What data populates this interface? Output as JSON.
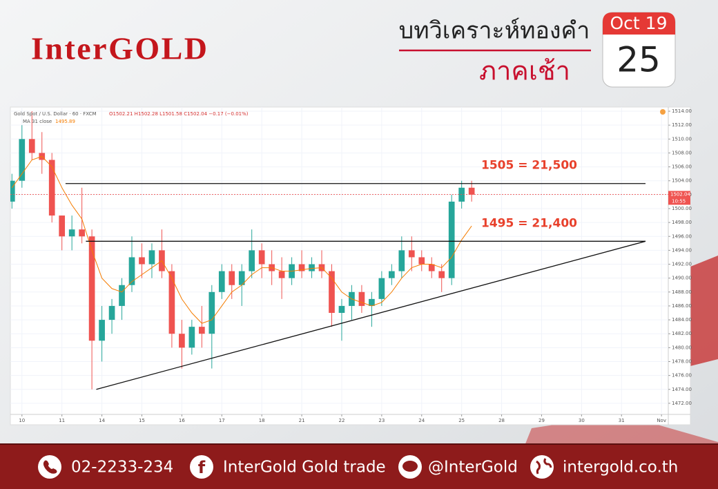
{
  "header": {
    "logo": "InterGOLD",
    "title": "บทวิเคราะห์ทองคำ",
    "subtitle": "ภาคเช้า",
    "calendar_month": "Oct 19",
    "calendar_day": "25"
  },
  "chart_data": {
    "type": "candlestick",
    "symbol": "Gold Spot / U.S. Dollar · 60 · FXCM",
    "ohlc_text": "O1502.21 H1502.28 L1501.58 C1502.04 −0.17 (−0.01%)",
    "up_color": "#26a69a",
    "down_color": "#ef5350",
    "x": [
      -0.25,
      0,
      0.25,
      0.5,
      0.75,
      1,
      1.25,
      1.5,
      1.75,
      2,
      2.25,
      2.5,
      2.75,
      3,
      3.25,
      3.5,
      3.75,
      4,
      4.25,
      4.5,
      4.75,
      5,
      5.25,
      5.5,
      5.75,
      6,
      6.25,
      6.5,
      6.75,
      7,
      7.25,
      7.5,
      7.75,
      8,
      8.25,
      8.5,
      8.75,
      9,
      9.25,
      9.5,
      9.75,
      10,
      10.25,
      10.5,
      10.75,
      11,
      11.25
    ],
    "open": [
      1501,
      1504,
      1510,
      1508,
      1507,
      1499,
      1496,
      1497,
      1496,
      1481,
      1484,
      1486,
      1489,
      1493,
      1492,
      1494,
      1491,
      1482,
      1480,
      1483,
      1482,
      1488,
      1491,
      1489,
      1491,
      1494,
      1492,
      1491,
      1490,
      1492,
      1491,
      1492,
      1491,
      1485,
      1486,
      1488,
      1486,
      1487,
      1490,
      1491,
      1494,
      1493,
      1492,
      1491,
      1490,
      1501,
      1503
    ],
    "high": [
      1505,
      1512,
      1514,
      1511,
      1508,
      1499,
      1499,
      1503,
      1497,
      1486,
      1487,
      1490,
      1496,
      1495,
      1495,
      1497,
      1492,
      1484,
      1484,
      1486,
      1489,
      1492,
      1492,
      1492,
      1497,
      1495,
      1494,
      1493,
      1493,
      1494,
      1493,
      1494,
      1492,
      1487,
      1489,
      1489,
      1488,
      1491,
      1492,
      1496,
      1496,
      1494,
      1493,
      1492,
      1502,
      1504,
      1504
    ],
    "low": [
      1500,
      1503,
      1507,
      1505,
      1498,
      1494,
      1494,
      1495,
      1474,
      1478,
      1482,
      1484,
      1488,
      1490,
      1490,
      1490,
      1480,
      1477,
      1479,
      1480,
      1477,
      1487,
      1487,
      1486,
      1490,
      1490,
      1489,
      1487,
      1489,
      1490,
      1490,
      1490,
      1483,
      1481,
      1484,
      1485,
      1483,
      1486,
      1489,
      1490,
      1491,
      1491,
      1490,
      1488,
      1489,
      1500,
      1501
    ],
    "close": [
      1504,
      1510,
      1508,
      1507,
      1499,
      1496,
      1497,
      1496,
      1481,
      1484,
      1486,
      1489,
      1493,
      1492,
      1494,
      1491,
      1482,
      1480,
      1483,
      1482,
      1488,
      1491,
      1489,
      1491,
      1494,
      1492,
      1491,
      1490,
      1492,
      1491,
      1492,
      1491,
      1485,
      1486,
      1488,
      1486,
      1487,
      1490,
      1491,
      1494,
      1493,
      1492,
      1491,
      1490,
      1501,
      1503,
      1502
    ],
    "ma": {
      "label": "MA 31 close",
      "last": 1495.89,
      "color": "#f57c00",
      "values": [
        1503,
        1505,
        1507,
        1507.5,
        1506,
        1503,
        1500.5,
        1498.5,
        1494,
        1490,
        1488.5,
        1488,
        1489.5,
        1490.5,
        1491.5,
        1492.5,
        1490,
        1487,
        1485,
        1483.5,
        1484,
        1486,
        1488,
        1489,
        1490.5,
        1491.5,
        1491.5,
        1491,
        1491,
        1491.2,
        1491.4,
        1491.5,
        1490,
        1488,
        1487,
        1486.5,
        1486,
        1486.5,
        1488,
        1490,
        1491.5,
        1492,
        1492,
        1491.5,
        1493,
        1495.5,
        1497.5
      ]
    },
    "last_price": 1502.04,
    "last_time": "10:55",
    "last_color": "#ef5350",
    "levels": [
      {
        "label": "1505 = 21,500",
        "value": 1503.6,
        "x": [
          1.09,
          15.6
        ]
      },
      {
        "label": "1495 = 21,400",
        "value": 1495.3,
        "x": [
          1.6,
          15.6
        ]
      }
    ],
    "trendline": {
      "x": [
        1.86,
        15.6
      ],
      "y": [
        1474,
        1495.3
      ]
    },
    "xlim": [
      -0.29,
      16.17
    ],
    "xticks": [
      {
        "value": 0,
        "label": "10"
      },
      {
        "value": 1,
        "label": "11"
      },
      {
        "value": 2,
        "label": "14"
      },
      {
        "value": 3,
        "label": "15"
      },
      {
        "value": 4,
        "label": "16"
      },
      {
        "value": 5,
        "label": "17"
      },
      {
        "value": 6,
        "label": "18"
      },
      {
        "value": 7,
        "label": "21"
      },
      {
        "value": 8,
        "label": "22"
      },
      {
        "value": 9,
        "label": "23"
      },
      {
        "value": 10,
        "label": "24"
      },
      {
        "value": 11,
        "label": "25"
      },
      {
        "value": 12,
        "label": "28"
      },
      {
        "value": 13,
        "label": "29"
      },
      {
        "value": 14,
        "label": "30"
      },
      {
        "value": 15,
        "label": "31"
      },
      {
        "value": 16,
        "label": "Nov"
      }
    ],
    "ylim": [
      1470.4,
      1514.6
    ],
    "yticks": [
      {
        "value": 1472,
        "label": "1472.00"
      },
      {
        "value": 1474,
        "label": "1474.00"
      },
      {
        "value": 1476,
        "label": "1476.00"
      },
      {
        "value": 1478,
        "label": "1478.00"
      },
      {
        "value": 1480,
        "label": "1480.00"
      },
      {
        "value": 1482,
        "label": "1482.00"
      },
      {
        "value": 1484,
        "label": "1484.00"
      },
      {
        "value": 1486,
        "label": "1486.00"
      },
      {
        "value": 1488,
        "label": "1488.00"
      },
      {
        "value": 1490,
        "label": "1490.00"
      },
      {
        "value": 1492,
        "label": "1492.00"
      },
      {
        "value": 1494,
        "label": "1494.00"
      },
      {
        "value": 1496,
        "label": "1496.00"
      },
      {
        "value": 1498,
        "label": "1498.00"
      },
      {
        "value": 1500,
        "label": "1500.00"
      },
      {
        "value": 1502,
        "label": "1502.00"
      },
      {
        "value": 1504,
        "label": "1504.00"
      },
      {
        "value": 1506,
        "label": "1506.00"
      },
      {
        "value": 1508,
        "label": "1508.00"
      },
      {
        "value": 1510,
        "label": "1510.00"
      },
      {
        "value": 1512,
        "label": "1512.00"
      },
      {
        "value": 1514,
        "label": "1514.00"
      }
    ],
    "grid": true
  },
  "footer": {
    "phone": "02-2233-234",
    "facebook": "InterGold Gold trade",
    "line": "@InterGold",
    "website": "intergold.co.th"
  }
}
